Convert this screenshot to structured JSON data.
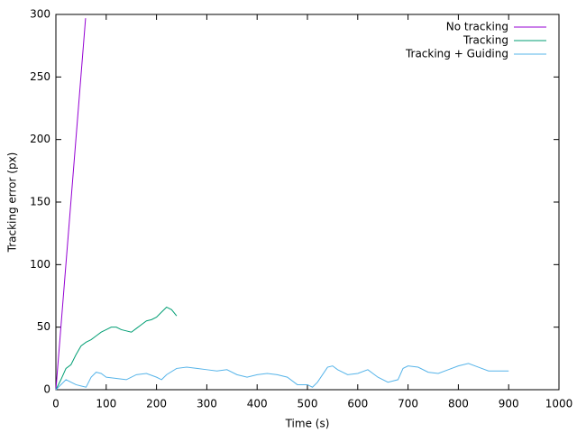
{
  "chart_data": {
    "type": "line",
    "xlabel": "Time (s)",
    "ylabel": "Tracking error (px)",
    "xlim": [
      0,
      1000
    ],
    "xticks": [
      0,
      100,
      200,
      300,
      400,
      500,
      600,
      700,
      800,
      900,
      1000
    ],
    "ylim": [
      0,
      300
    ],
    "yticks": [
      0,
      50,
      100,
      150,
      200,
      250,
      300
    ],
    "legend": "top-right",
    "series": [
      {
        "name": "No tracking",
        "color": "#9400d3",
        "x": [
          0,
          59
        ],
        "values": [
          0,
          297
        ]
      },
      {
        "name": "Tracking",
        "color": "#009e73",
        "x": [
          0,
          10,
          20,
          30,
          40,
          50,
          60,
          70,
          80,
          90,
          100,
          110,
          120,
          130,
          140,
          150,
          160,
          170,
          180,
          190,
          200,
          210,
          220,
          230,
          240
        ],
        "values": [
          0,
          8,
          17,
          20,
          28,
          35,
          38,
          40,
          43,
          46,
          48,
          50,
          50,
          48,
          47,
          46,
          49,
          52,
          55,
          56,
          58,
          62,
          66,
          64,
          59
        ]
      },
      {
        "name": "Tracking + Guiding",
        "color": "#56b4e9",
        "x": [
          0,
          20,
          40,
          50,
          60,
          70,
          80,
          90,
          100,
          120,
          140,
          160,
          180,
          200,
          210,
          220,
          240,
          260,
          280,
          300,
          320,
          340,
          360,
          380,
          400,
          420,
          440,
          460,
          480,
          500,
          510,
          520,
          540,
          550,
          560,
          580,
          600,
          620,
          640,
          660,
          680,
          690,
          700,
          720,
          740,
          760,
          780,
          800,
          820,
          840,
          860,
          880,
          900
        ],
        "values": [
          0,
          8,
          4,
          3,
          2,
          10,
          14,
          13,
          10,
          9,
          8,
          12,
          13,
          10,
          8,
          12,
          17,
          18,
          17,
          16,
          15,
          16,
          12,
          10,
          12,
          13,
          12,
          10,
          4,
          4,
          2,
          6,
          18,
          19,
          16,
          12,
          13,
          16,
          10,
          6,
          8,
          17,
          19,
          18,
          14,
          13,
          16,
          19,
          21,
          18,
          15,
          15,
          15
        ]
      }
    ]
  }
}
